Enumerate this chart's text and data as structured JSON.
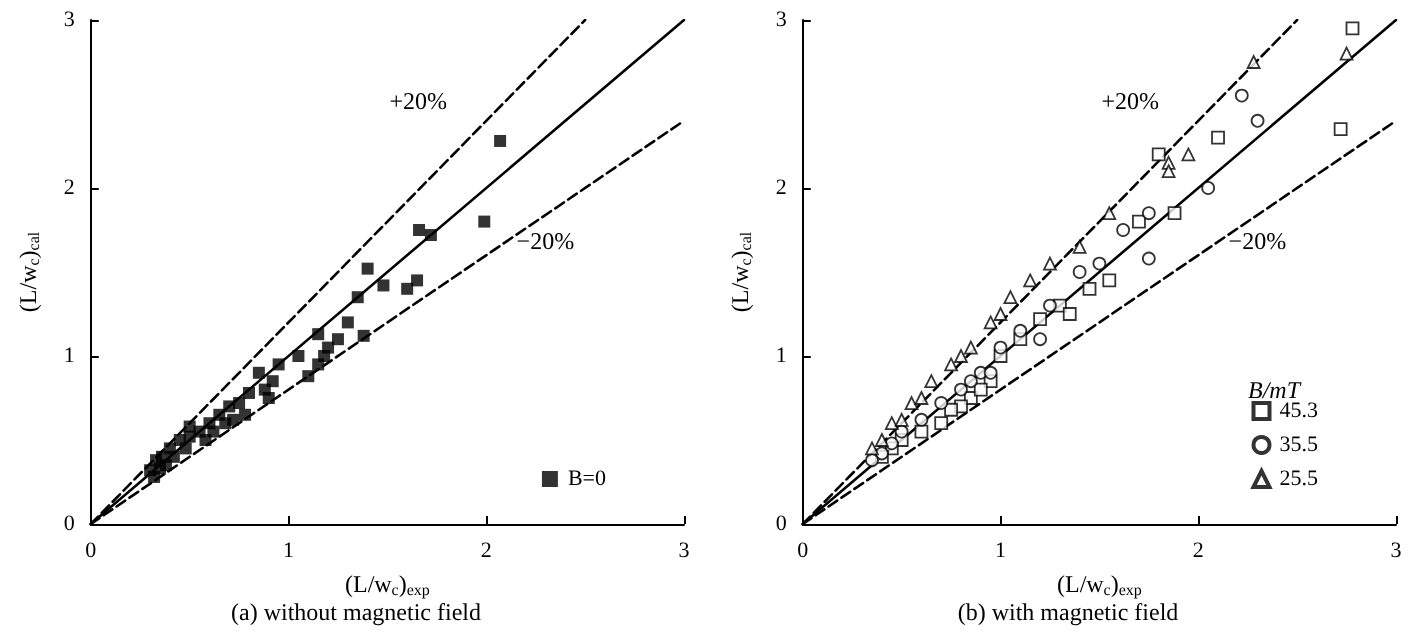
{
  "chart_data": [
    {
      "type": "scatter",
      "title": "(a) without magnetic field",
      "xlabel": "(L/w$_{c}$)$_{exp}$",
      "ylabel": "(L/w$_{c}$)$_{cal}$",
      "xlim": [
        0,
        3
      ],
      "ylim": [
        0,
        3
      ],
      "xticks": [
        0,
        1,
        2,
        3
      ],
      "yticks": [
        0,
        1,
        2,
        3
      ],
      "grid": false,
      "legend": "bottom right",
      "annotations": [
        "+20%",
        "−20%"
      ],
      "series": [
        {
          "type": "line",
          "line_style": "solid",
          "marker": "none",
          "color": "#000000",
          "x": [
            0,
            3
          ],
          "values": [
            0,
            3
          ]
        },
        {
          "type": "line",
          "line_style": "dashed",
          "marker": "none",
          "color": "#000000",
          "x": [
            0,
            2.5
          ],
          "values": [
            0,
            3
          ]
        },
        {
          "type": "line",
          "line_style": "dashed",
          "marker": "none",
          "color": "#000000",
          "x": [
            0,
            3
          ],
          "values": [
            0,
            2.4
          ]
        },
        {
          "name": "B=0",
          "type": "scatter",
          "marker": "square",
          "color": "#000000",
          "x": [
            2.07,
            1.99,
            1.66,
            1.72,
            1.65,
            1.6,
            1.48,
            1.4,
            1.35,
            1.38,
            1.3,
            1.25,
            1.15,
            1.15,
            1.2,
            1.1,
            1.05,
            0.95,
            0.92,
            0.9,
            0.85,
            0.8,
            0.78,
            0.75,
            0.7,
            0.68,
            0.65,
            0.62,
            0.6,
            0.55,
            0.5,
            0.48,
            0.45,
            0.42,
            0.4,
            0.38,
            0.36,
            0.35,
            0.33,
            0.3,
            0.32,
            0.5,
            0.58,
            0.72,
            0.88,
            1.18
          ],
          "values": [
            2.28,
            1.8,
            1.75,
            1.72,
            1.45,
            1.4,
            1.42,
            1.52,
            1.35,
            1.12,
            1.2,
            1.1,
            1.13,
            0.95,
            1.05,
            0.88,
            1.0,
            0.95,
            0.85,
            0.75,
            0.9,
            0.78,
            0.65,
            0.72,
            0.7,
            0.6,
            0.65,
            0.55,
            0.6,
            0.55,
            0.52,
            0.45,
            0.5,
            0.4,
            0.45,
            0.35,
            0.4,
            0.33,
            0.38,
            0.32,
            0.28,
            0.58,
            0.5,
            0.62,
            0.8,
            1.0
          ]
        }
      ]
    },
    {
      "type": "scatter",
      "title": "(b) with magnetic field",
      "xlabel": "(L/w$_{c}$)$_{exp}$",
      "ylabel": "(L/w$_{c}$)$_{cal}$",
      "legend_title": "B/mT",
      "xlim": [
        0,
        3
      ],
      "ylim": [
        0,
        3
      ],
      "xticks": [
        0,
        1,
        2,
        3
      ],
      "yticks": [
        0,
        1,
        2,
        3
      ],
      "grid": false,
      "legend": "bottom right",
      "annotations": [
        "+20%",
        "−20%"
      ],
      "series": [
        {
          "type": "line",
          "line_style": "solid",
          "marker": "none",
          "color": "#000000",
          "x": [
            0,
            3
          ],
          "values": [
            0,
            3
          ]
        },
        {
          "type": "line",
          "line_style": "dashed",
          "marker": "none",
          "color": "#000000",
          "x": [
            0,
            2.5
          ],
          "values": [
            0,
            3
          ]
        },
        {
          "type": "line",
          "line_style": "dashed",
          "marker": "none",
          "color": "#000000",
          "x": [
            0,
            3
          ],
          "values": [
            0,
            2.4
          ]
        },
        {
          "name": "45.3",
          "type": "scatter",
          "marker": "square",
          "color": "#000000",
          "x": [
            2.78,
            2.72,
            2.1,
            1.8,
            1.88,
            1.7,
            1.55,
            1.45,
            1.3,
            1.2,
            1.1,
            1.0,
            0.95,
            0.85,
            0.8,
            0.7,
            0.6,
            0.5,
            0.45,
            0.4,
            0.9,
            1.35,
            0.75
          ],
          "values": [
            2.95,
            2.35,
            2.3,
            2.2,
            1.85,
            1.8,
            1.45,
            1.4,
            1.3,
            1.22,
            1.1,
            1.0,
            0.85,
            0.75,
            0.7,
            0.6,
            0.55,
            0.5,
            0.45,
            0.4,
            0.8,
            1.25,
            0.68
          ]
        },
        {
          "name": "35.5",
          "type": "scatter",
          "marker": "circle",
          "color": "#000000",
          "x": [
            2.22,
            2.3,
            2.05,
            1.75,
            1.62,
            1.75,
            1.5,
            1.4,
            1.25,
            1.1,
            1.0,
            0.9,
            0.8,
            0.7,
            0.6,
            0.5,
            0.45,
            0.4,
            0.35,
            1.2,
            0.95,
            0.85
          ],
          "values": [
            2.55,
            2.4,
            2.0,
            1.85,
            1.75,
            1.58,
            1.55,
            1.5,
            1.3,
            1.15,
            1.05,
            0.9,
            0.8,
            0.72,
            0.62,
            0.55,
            0.48,
            0.42,
            0.38,
            1.1,
            0.9,
            0.85
          ]
        },
        {
          "name": "25.5",
          "type": "scatter",
          "marker": "triangle",
          "color": "#000000",
          "x": [
            2.75,
            2.28,
            1.85,
            1.95,
            1.85,
            1.55,
            1.4,
            1.25,
            1.15,
            1.05,
            0.95,
            0.85,
            0.75,
            0.65,
            0.55,
            0.45,
            0.4,
            0.35,
            1.0,
            0.8,
            0.6,
            0.5
          ],
          "values": [
            2.8,
            2.75,
            2.15,
            2.2,
            2.1,
            1.85,
            1.65,
            1.55,
            1.45,
            1.35,
            1.2,
            1.05,
            0.95,
            0.85,
            0.72,
            0.6,
            0.5,
            0.45,
            1.25,
            1.0,
            0.75,
            0.62
          ]
        }
      ]
    }
  ]
}
